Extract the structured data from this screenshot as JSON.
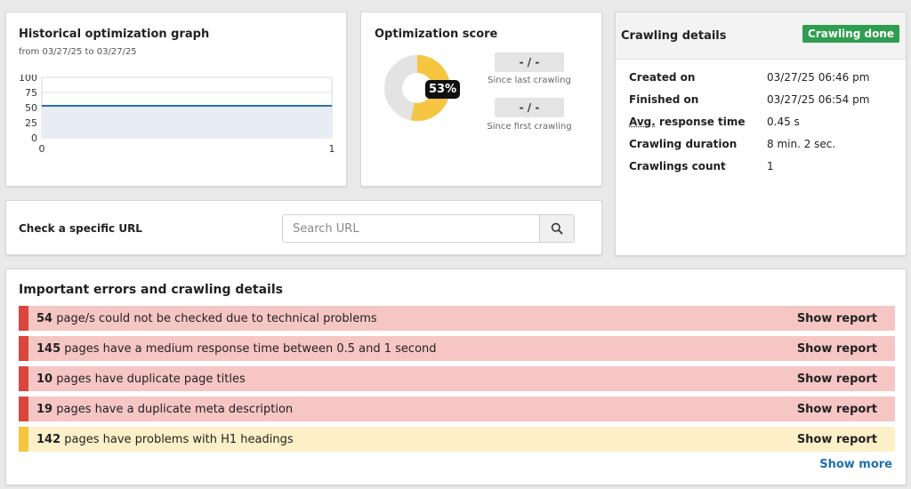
{
  "history": {
    "title": "Historical optimization graph",
    "subtitle": "from 03/27/25 to 03/27/25"
  },
  "chart_data": {
    "type": "line",
    "x": [
      0,
      1
    ],
    "series": [
      {
        "values": [
          53,
          53
        ]
      }
    ],
    "xlim": [
      0,
      1
    ],
    "ylim": [
      0,
      100
    ],
    "y_ticks": [
      0,
      25,
      50,
      75,
      100
    ],
    "x_ticks": [
      0,
      1
    ],
    "grid": true,
    "color": "#2d6ea8"
  },
  "score": {
    "title": "Optimization score",
    "percent_label": "53%",
    "percent": 53,
    "since_last_value": "- / -",
    "since_last_caption": "Since last crawling",
    "since_first_value": "- / -",
    "since_first_caption": "Since first crawling",
    "colors": {
      "filled": "#f6c542",
      "empty": "#e3e3e3"
    }
  },
  "crawl": {
    "title": "Crawling details",
    "status": "Crawling done",
    "status_color": "#2f9e4f",
    "created_label": "Created on",
    "created_value": "03/27/25 06:46 pm",
    "finished_label": "Finished on",
    "finished_value": "03/27/25 06:54 pm",
    "avg_abbr": "Avg.",
    "avg_label_rest": " response time",
    "avg_value": "0.45 s",
    "duration_label": "Crawling duration",
    "duration_value": "8 min. 2 sec.",
    "count_label": "Crawlings count",
    "count_value": "1"
  },
  "url_check": {
    "label": "Check a specific URL",
    "placeholder": "Search URL",
    "button_icon": "search-icon"
  },
  "errors": {
    "title": "Important errors and crawling details",
    "rows": [
      {
        "count": "54",
        "text": " page/s could not be checked due to technical problems",
        "link": "Show report",
        "severity": "red"
      },
      {
        "count": "145",
        "text": " pages have a medium response time between 0.5 and 1 second",
        "link": "Show report",
        "severity": "red"
      },
      {
        "count": "10",
        "text": " pages have duplicate page titles",
        "link": "Show report",
        "severity": "red"
      },
      {
        "count": "19",
        "text": " pages have a duplicate meta description",
        "link": "Show report",
        "severity": "red"
      },
      {
        "count": "142",
        "text": " pages have problems with H1 headings",
        "link": "Show report",
        "severity": "yellow"
      }
    ],
    "show_more": "Show more",
    "colors": {
      "red_bar": "#d9463d",
      "red_bg": "#f6c6c4",
      "yellow_bar": "#f3c63f",
      "yellow_bg": "#fdf0c8",
      "link": "#1f6fb2"
    }
  }
}
